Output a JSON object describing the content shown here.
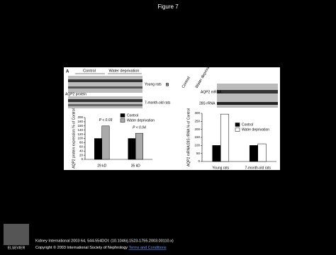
{
  "header": {
    "title": "Figure 7"
  },
  "panel_a": {
    "label": "A",
    "group_labels": [
      "Control",
      "Water deprivation"
    ],
    "row_labels": [
      "Young rats",
      "7-month-old rats"
    ],
    "blot_label": "AQP2 protein"
  },
  "panel_b": {
    "label": "B",
    "lane_labels": [
      "Control",
      "Water deprivation"
    ],
    "band_labels": [
      "AQP2 mRNA",
      "28S rRNA"
    ]
  },
  "chart_data": [
    {
      "type": "bar",
      "y_label": "AQP2 protein expression % of Control",
      "categories": [
        "29 kD",
        "35 kD"
      ],
      "series": [
        {
          "name": "Control",
          "color": "#000000",
          "values": [
            100,
            100
          ]
        },
        {
          "name": "Water deprivation",
          "color": "#aaaaaa",
          "values": [
            160,
            125
          ]
        }
      ],
      "annotations": [
        "P < 0.03",
        "P < 0.04"
      ],
      "ylim": [
        0,
        200
      ],
      "yticks": [
        0,
        20,
        40,
        60,
        80,
        100,
        120,
        140,
        160,
        180,
        200
      ],
      "legend": "upper right"
    },
    {
      "type": "bar",
      "y_label": "AQP2 mRNA/28S rRNA % of Control",
      "categories": [
        "Young rats",
        "7-month-old rats"
      ],
      "series": [
        {
          "name": "Control",
          "color": "#000000",
          "values": [
            100,
            100
          ]
        },
        {
          "name": "Water deprivation",
          "color": "#ffffff",
          "values": [
            295,
            110
          ]
        }
      ],
      "ylim": [
        0,
        300
      ],
      "yticks": [
        0,
        50,
        100,
        150,
        200,
        250,
        300
      ],
      "legend": "upper right"
    }
  ],
  "footer": {
    "citation": "Kidney International 2003 64, 544-554DOI: (10.1046/j.1523-1755.2003.00110.x)",
    "copyright": "Copyright © 2003 International Society of Nephrology",
    "link": "Terms and Conditions",
    "logo": "ELSEVIER"
  }
}
